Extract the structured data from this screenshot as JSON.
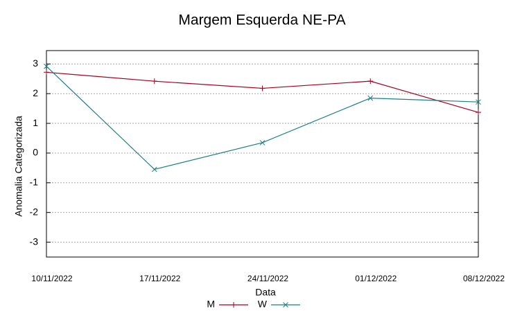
{
  "chart_data": {
    "type": "line",
    "title": "Margem Esquerda NE-PA",
    "x_label": "Data",
    "y_label": "Anomalia Categorizada",
    "categories": [
      "10/11/2022",
      "17/11/2022",
      "24/11/2022",
      "01/12/2022",
      "08/12/2022"
    ],
    "series": [
      {
        "name": "M",
        "color": "#a4001e",
        "marker": "+",
        "values": [
          2.72,
          2.42,
          2.18,
          2.42,
          1.37
        ]
      },
      {
        "name": "W",
        "color": "#1a7f80",
        "marker": "x",
        "values": [
          2.92,
          -0.55,
          0.35,
          1.85,
          1.72
        ]
      }
    ],
    "ylim": [
      -3.5,
      3.45
    ],
    "yticks": [
      -3,
      -2,
      -1,
      0,
      1,
      2,
      3
    ],
    "grid": true,
    "legend": "bottom"
  }
}
